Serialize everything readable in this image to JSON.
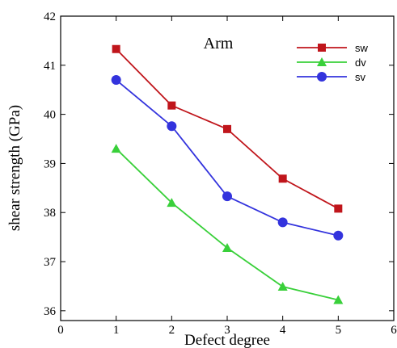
{
  "chart_data": {
    "type": "line",
    "title": "Arm",
    "xlabel": "Defect degree",
    "ylabel": "shear strength (GPa)",
    "xlim": [
      0,
      6
    ],
    "ylim": [
      35.8,
      42
    ],
    "x_ticks": [
      0,
      1,
      2,
      3,
      4,
      5,
      6
    ],
    "y_ticks": [
      36,
      37,
      38,
      39,
      40,
      41,
      42
    ],
    "grid": false,
    "legend_position": "top-right",
    "x": [
      1,
      2,
      3,
      4,
      5
    ],
    "series": [
      {
        "name": "sw",
        "color": "#c0151b",
        "marker": "square",
        "values": [
          41.33,
          40.18,
          39.7,
          38.69,
          38.08
        ]
      },
      {
        "name": "dv",
        "color": "#39d03a",
        "marker": "triangle",
        "values": [
          39.3,
          38.2,
          37.28,
          36.49,
          36.22
        ]
      },
      {
        "name": "sv",
        "color": "#3333dd",
        "marker": "circle",
        "values": [
          40.7,
          39.76,
          38.33,
          37.8,
          37.53
        ]
      }
    ]
  }
}
